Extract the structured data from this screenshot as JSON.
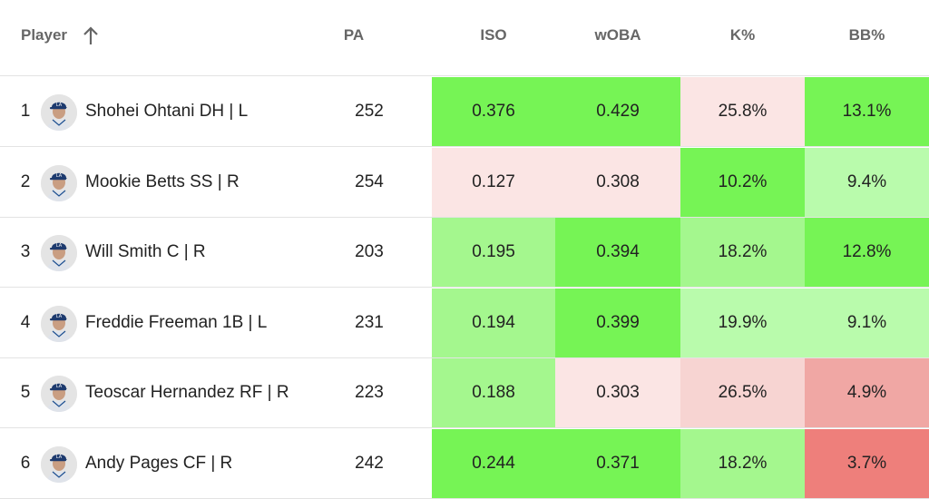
{
  "header": {
    "player": "Player",
    "pa": "PA",
    "iso": "ISO",
    "woba": "wOBA",
    "k_pct": "K%",
    "bb_pct": "BB%",
    "sort_icon": "arrow-up-icon"
  },
  "colors": {
    "green_strong": "#76f455",
    "green_mid": "#a4f78e",
    "green_light": "#b9fbac",
    "red_faint": "#fbe5e4",
    "red_light": "#f7d4d2",
    "red_mid": "#f0a7a4",
    "red_strong": "#ee7f7b",
    "neutral": "#ffffff",
    "text": "#222222",
    "header_text": "#666666"
  },
  "rows": [
    {
      "rank": "1",
      "name": "Shohei Ohtani DH | L",
      "pa": "252",
      "iso": "0.376",
      "woba": "0.429",
      "k": "25.8%",
      "bb": "13.1%",
      "iso_color": "#76f455",
      "woba_color": "#76f455",
      "k_color": "#fbe5e4",
      "bb_color": "#76f455"
    },
    {
      "rank": "2",
      "name": "Mookie Betts SS | R",
      "pa": "254",
      "iso": "0.127",
      "woba": "0.308",
      "k": "10.2%",
      "bb": "9.4%",
      "iso_color": "#fbe5e4",
      "woba_color": "#fbe5e4",
      "k_color": "#76f455",
      "bb_color": "#b9fbac"
    },
    {
      "rank": "3",
      "name": "Will Smith C | R",
      "pa": "203",
      "iso": "0.195",
      "woba": "0.394",
      "k": "18.2%",
      "bb": "12.8%",
      "iso_color": "#a4f78e",
      "woba_color": "#76f455",
      "k_color": "#a4f78e",
      "bb_color": "#76f455"
    },
    {
      "rank": "4",
      "name": "Freddie Freeman 1B | L",
      "pa": "231",
      "iso": "0.194",
      "woba": "0.399",
      "k": "19.9%",
      "bb": "9.1%",
      "iso_color": "#a4f78e",
      "woba_color": "#76f455",
      "k_color": "#b9fbac",
      "bb_color": "#b9fbac"
    },
    {
      "rank": "5",
      "name": "Teoscar Hernandez RF | R",
      "pa": "223",
      "iso": "0.188",
      "woba": "0.303",
      "k": "26.5%",
      "bb": "4.9%",
      "iso_color": "#a4f78e",
      "woba_color": "#fbe5e4",
      "k_color": "#f7d4d2",
      "bb_color": "#f0a7a4"
    },
    {
      "rank": "6",
      "name": "Andy Pages CF | R",
      "pa": "242",
      "iso": "0.244",
      "woba": "0.371",
      "k": "18.2%",
      "bb": "3.7%",
      "iso_color": "#76f455",
      "woba_color": "#76f455",
      "k_color": "#a4f78e",
      "bb_color": "#ee7f7b"
    }
  ]
}
